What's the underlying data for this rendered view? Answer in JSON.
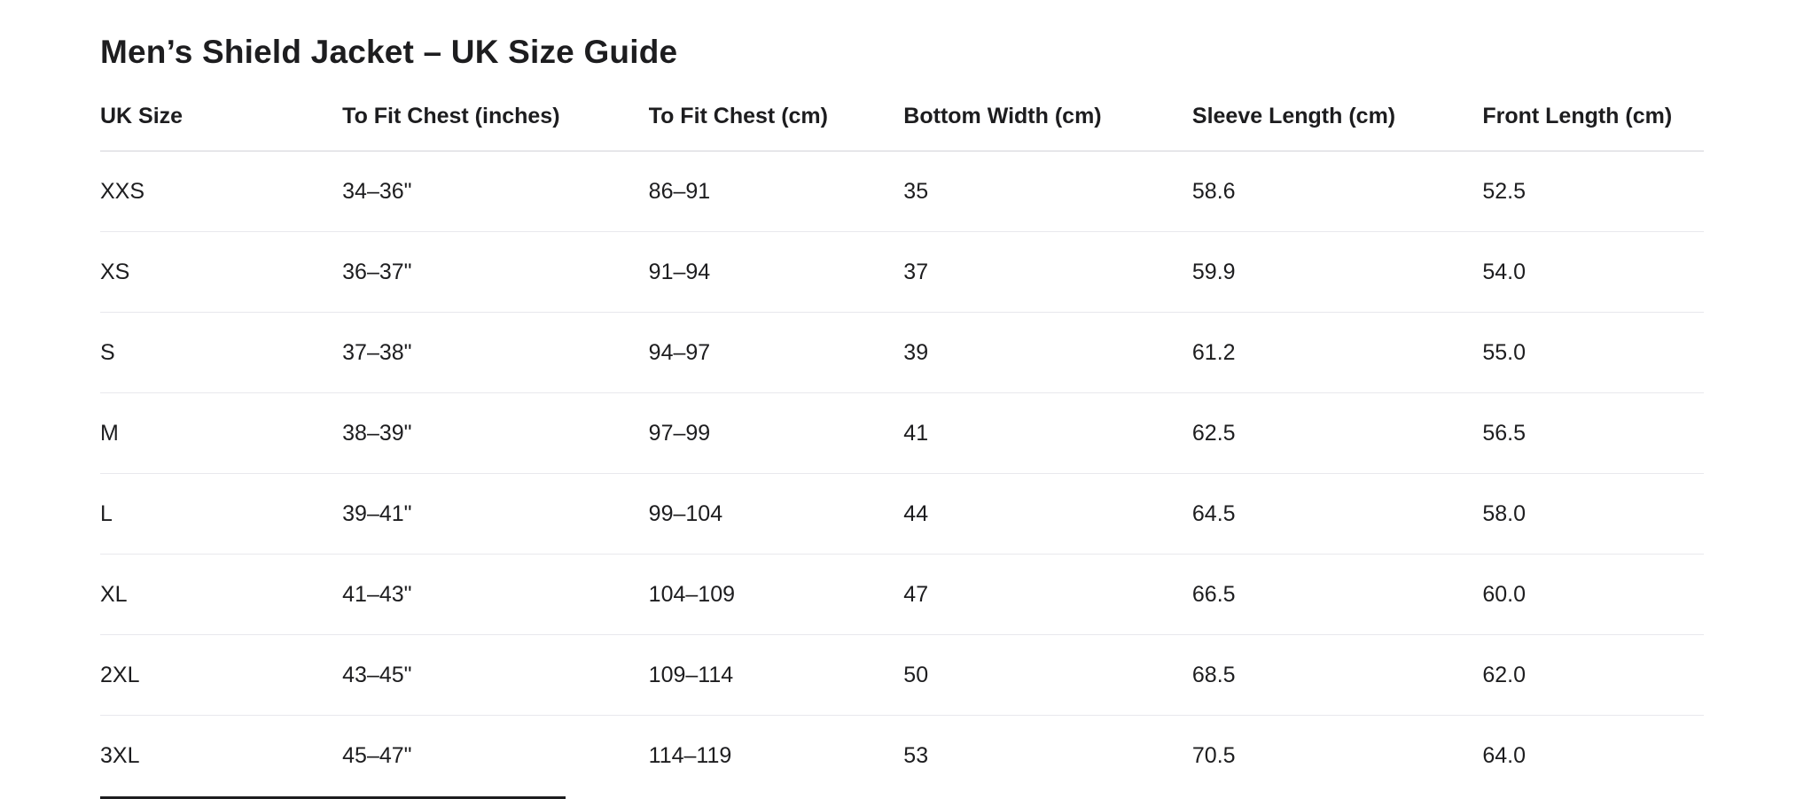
{
  "page": {
    "title": "Men’s Shield Jacket – UK Size Guide"
  },
  "size_table": {
    "columns": [
      "UK Size",
      "To Fit Chest (inches)",
      "To Fit Chest (cm)",
      "Bottom Width (cm)",
      "Sleeve Length (cm)",
      "Front Length (cm)"
    ],
    "column_widths_pct": [
      15.1,
      19.1,
      15.9,
      18.0,
      18.1,
      13.8
    ],
    "rows": [
      {
        "uk_size": "XXS",
        "chest_in": "34–36\"",
        "chest_cm": "86–91",
        "bottom_width_cm": "35",
        "sleeve_length_cm": "58.6",
        "front_length_cm": "52.5"
      },
      {
        "uk_size": "XS",
        "chest_in": "36–37\"",
        "chest_cm": "91–94",
        "bottom_width_cm": "37",
        "sleeve_length_cm": "59.9",
        "front_length_cm": "54.0"
      },
      {
        "uk_size": "S",
        "chest_in": "37–38\"",
        "chest_cm": "94–97",
        "bottom_width_cm": "39",
        "sleeve_length_cm": "61.2",
        "front_length_cm": "55.0"
      },
      {
        "uk_size": "M",
        "chest_in": "38–39\"",
        "chest_cm": "97–99",
        "bottom_width_cm": "41",
        "sleeve_length_cm": "62.5",
        "front_length_cm": "56.5"
      },
      {
        "uk_size": "L",
        "chest_in": "39–41\"",
        "chest_cm": "99–104",
        "bottom_width_cm": "44",
        "sleeve_length_cm": "64.5",
        "front_length_cm": "58.0"
      },
      {
        "uk_size": "XL",
        "chest_in": "41–43\"",
        "chest_cm": "104–109",
        "bottom_width_cm": "47",
        "sleeve_length_cm": "66.5",
        "front_length_cm": "60.0"
      },
      {
        "uk_size": "2XL",
        "chest_in": "43–45\"",
        "chest_cm": "109–114",
        "bottom_width_cm": "50",
        "sleeve_length_cm": "68.5",
        "front_length_cm": "62.0"
      },
      {
        "uk_size": "3XL",
        "chest_in": "45–47\"",
        "chest_cm": "114–119",
        "bottom_width_cm": "53",
        "sleeve_length_cm": "70.5",
        "front_length_cm": "64.0"
      }
    ],
    "row_field_order": [
      "uk_size",
      "chest_in",
      "chest_cm",
      "bottom_width_cm",
      "sleeve_length_cm",
      "front_length_cm"
    ]
  },
  "colors": {
    "background": "#ffffff",
    "text": "#1d1d1f",
    "header_rule": "#d2d2d7",
    "row_rule": "#e8e8ed"
  }
}
